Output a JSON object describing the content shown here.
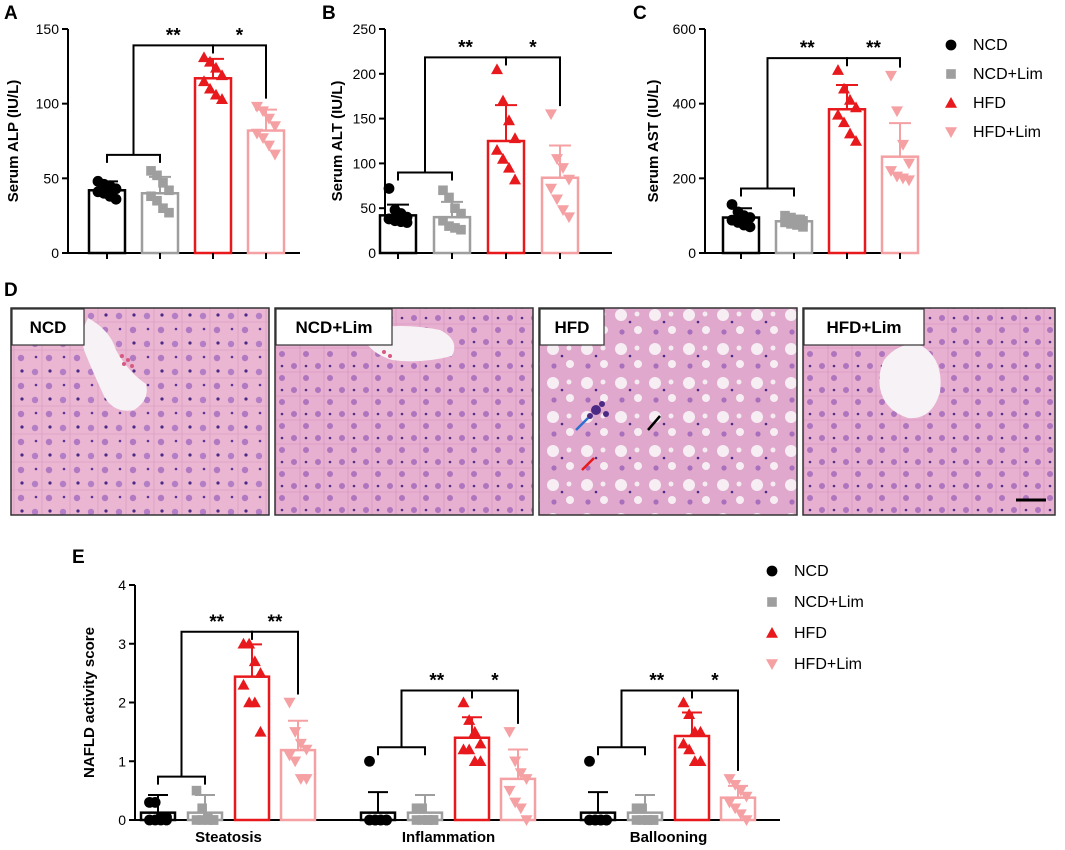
{
  "panel_letters": {
    "a": "A",
    "b": "B",
    "c": "C",
    "d": "D",
    "e": "E"
  },
  "legend_labels": [
    "NCD",
    "NCD+Lim",
    "HFD",
    "HFD+Lim"
  ],
  "group_colors": [
    "#000000",
    "#9e9e9e",
    "#e8191c",
    "#f5a0a3"
  ],
  "group_markers": [
    "circle",
    "square",
    "triangle",
    "triangle-down"
  ],
  "histology_titles": [
    "NCD",
    "NCD+Lim",
    "HFD",
    "HFD+Lim"
  ],
  "chart_data": [
    {
      "id": "A",
      "type": "bar",
      "ylabel": "Serum ALP (IU/L)",
      "ylim": [
        0,
        150
      ],
      "yticks": [
        0,
        50,
        100,
        150
      ],
      "categories": [
        "NCD",
        "NCD+Lim",
        "HFD",
        "HFD+Lim"
      ],
      "values": [
        42,
        40,
        117,
        82
      ],
      "sd": [
        6,
        11,
        13,
        14
      ],
      "points": [
        [
          48,
          46,
          45,
          43,
          41,
          40,
          38,
          36
        ],
        [
          55,
          52,
          47,
          42,
          38,
          35,
          30,
          27
        ],
        [
          131,
          128,
          124,
          119,
          115,
          110,
          106,
          103
        ],
        [
          98,
          95,
          90,
          85,
          80,
          77,
          72,
          66
        ]
      ],
      "significance": [
        {
          "from": [
            0,
            1
          ],
          "to": 2,
          "label": "**"
        },
        {
          "from": [
            2
          ],
          "to": 3,
          "label": "*"
        }
      ]
    },
    {
      "id": "B",
      "type": "bar",
      "ylabel": "Serum ALT (IU/L)",
      "ylim": [
        0,
        250
      ],
      "yticks": [
        0,
        50,
        100,
        150,
        200,
        250
      ],
      "categories": [
        "NCD",
        "NCD+Lim",
        "HFD",
        "HFD+Lim"
      ],
      "values": [
        42,
        40,
        125,
        84
      ],
      "sd": [
        12,
        17,
        40,
        36
      ],
      "points": [
        [
          72,
          48,
          44,
          40,
          38,
          36,
          35,
          34
        ],
        [
          70,
          62,
          50,
          44,
          36,
          30,
          28,
          26
        ],
        [
          205,
          170,
          148,
          128,
          115,
          105,
          95,
          82
        ],
        [
          155,
          105,
          95,
          82,
          72,
          60,
          48,
          40
        ]
      ],
      "significance": [
        {
          "from": [
            0,
            1
          ],
          "to": 2,
          "label": "**"
        },
        {
          "from": [
            2
          ],
          "to": 3,
          "label": "*"
        }
      ]
    },
    {
      "id": "C",
      "type": "bar",
      "ylabel": "Serum AST (IU/L)",
      "ylim": [
        0,
        600
      ],
      "yticks": [
        0,
        200,
        400,
        600
      ],
      "categories": [
        "NCD",
        "NCD+Lim",
        "HFD",
        "HFD+Lim"
      ],
      "values": [
        95,
        85,
        385,
        258
      ],
      "sd": [
        25,
        15,
        65,
        90
      ],
      "points": [
        [
          130,
          110,
          100,
          95,
          88,
          82,
          75,
          70
        ],
        [
          100,
          95,
          90,
          86,
          82,
          78,
          75,
          70
        ],
        [
          490,
          440,
          410,
          390,
          370,
          350,
          320,
          300
        ],
        [
          475,
          380,
          290,
          240,
          220,
          205,
          200,
          195
        ]
      ],
      "significance": [
        {
          "from": [
            0,
            1
          ],
          "to": 2,
          "label": "**"
        },
        {
          "from": [
            2
          ],
          "to": 3,
          "label": "**"
        }
      ]
    },
    {
      "id": "E",
      "type": "bar",
      "ylabel": "NAFLD activity score",
      "ylim": [
        0,
        4
      ],
      "yticks": [
        0,
        1,
        2,
        3,
        4
      ],
      "categories": [
        "Steatosis",
        "Inflammation",
        "Ballooning"
      ],
      "series": [
        {
          "name": "NCD",
          "values": [
            0.125,
            0.125,
            0.125
          ],
          "sd": [
            0.3,
            0.35,
            0.35
          ],
          "points": [
            [
              0.3,
              0.3,
              0.05,
              0.05,
              0,
              0,
              0,
              0
            ],
            [
              1,
              0,
              0,
              0,
              0,
              0,
              0,
              0
            ],
            [
              1,
              0,
              0,
              0,
              0,
              0,
              0,
              0
            ]
          ]
        },
        {
          "name": "NCD+Lim",
          "values": [
            0.125,
            0.125,
            0.125
          ],
          "sd": [
            0.3,
            0.3,
            0.3
          ],
          "points": [
            [
              0.5,
              0.2,
              0.05,
              0,
              0,
              0,
              0,
              0
            ],
            [
              0.2,
              0.2,
              0,
              0,
              0,
              0,
              0,
              0
            ],
            [
              0.2,
              0.2,
              0,
              0,
              0,
              0,
              0,
              0
            ]
          ]
        },
        {
          "name": "HFD",
          "values": [
            2.44,
            1.4,
            1.43
          ],
          "sd": [
            0.55,
            0.35,
            0.4
          ],
          "points": [
            [
              3,
              3,
              2.7,
              2.5,
              2.3,
              2,
              2,
              1.5
            ],
            [
              2,
              1.7,
              1.5,
              1.3,
              1.2,
              1.2,
              1,
              1
            ],
            [
              2,
              1.8,
              1.5,
              1.5,
              1.3,
              1.2,
              1,
              1
            ]
          ]
        },
        {
          "name": "HFD+Lim",
          "values": [
            1.19,
            0.7,
            0.38
          ],
          "sd": [
            0.5,
            0.5,
            0.2
          ],
          "points": [
            [
              2,
              1.5,
              1.3,
              1.2,
              1.1,
              1,
              0.7,
              0.7
            ],
            [
              1.5,
              1,
              0.8,
              0.7,
              0.5,
              0.3,
              0.2,
              0
            ],
            [
              0.7,
              0.6,
              0.5,
              0.4,
              0.3,
              0.2,
              0.1,
              0
            ]
          ]
        }
      ],
      "significance": [
        [
          {
            "from": [
              0,
              1
            ],
            "to": 2,
            "label": "**"
          },
          {
            "from": [
              2
            ],
            "to": 3,
            "label": "**"
          }
        ],
        [
          {
            "from": [
              0,
              1
            ],
            "to": 2,
            "label": "**"
          },
          {
            "from": [
              2
            ],
            "to": 3,
            "label": "*"
          }
        ],
        [
          {
            "from": [
              0,
              1
            ],
            "to": 2,
            "label": "**"
          },
          {
            "from": [
              2
            ],
            "to": 3,
            "label": "*"
          }
        ]
      ]
    }
  ]
}
